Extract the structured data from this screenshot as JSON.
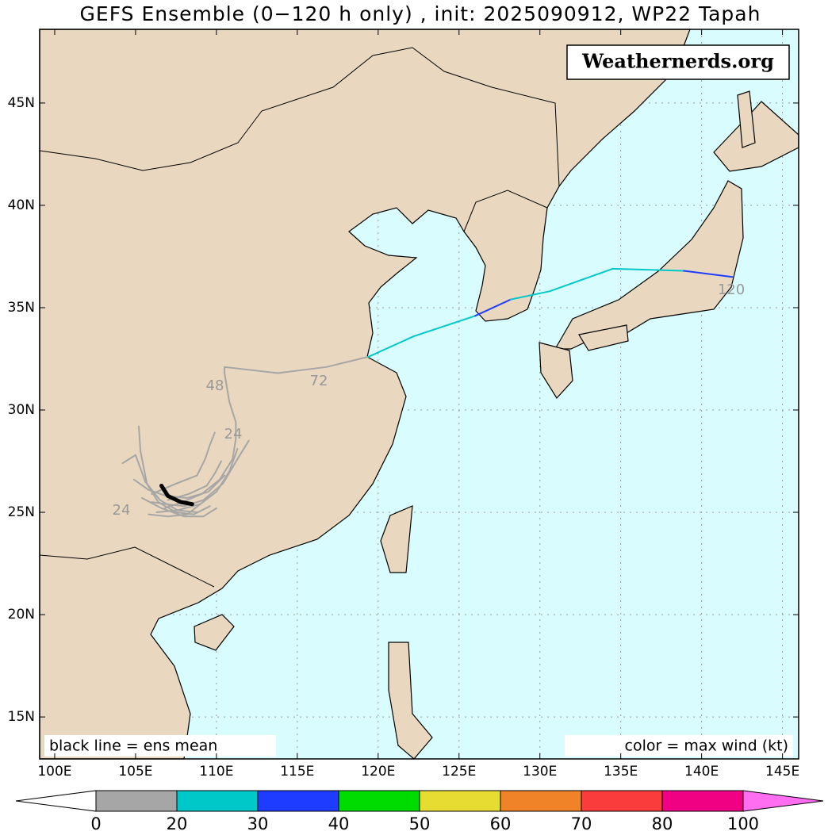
{
  "title": "GEFS Ensemble (0−120 h only) , init: 2025090912, WP22 Tapah",
  "watermark": "Weathernerds.org",
  "mean_note": "black line = ens mean",
  "color_note": "color = max wind (kt)",
  "map": {
    "lon_range": [
      99.07,
      146.0
    ],
    "lat_range": [
      12.95,
      48.6
    ],
    "land_color": "#e9d8bf",
    "ocean_color": "#d9fdfe",
    "grid": true,
    "xticks": [
      {
        "value": 100,
        "label": "100E"
      },
      {
        "value": 105,
        "label": "105E"
      },
      {
        "value": 110,
        "label": "110E"
      },
      {
        "value": 115,
        "label": "115E"
      },
      {
        "value": 120,
        "label": "120E"
      },
      {
        "value": 125,
        "label": "125E"
      },
      {
        "value": 130,
        "label": "130E"
      },
      {
        "value": 135,
        "label": "135E"
      },
      {
        "value": 140,
        "label": "140E"
      },
      {
        "value": 145,
        "label": "145E"
      }
    ],
    "yticks": [
      {
        "value": 15,
        "label": "15N"
      },
      {
        "value": 20,
        "label": "20N"
      },
      {
        "value": 25,
        "label": "25N"
      },
      {
        "value": 30,
        "label": "30N"
      },
      {
        "value": 35,
        "label": "35N"
      },
      {
        "value": 40,
        "label": "40N"
      },
      {
        "value": 45,
        "label": "45N"
      }
    ]
  },
  "tracks": {
    "segments": [
      {
        "color": "#a6a6a6",
        "lon": [
          111.2,
          110.8,
          110.5,
          110.5,
          113.8,
          116.8,
          119.4
        ],
        "lat": [
          29.4,
          30.4,
          31.8,
          32.1,
          31.8,
          32.1,
          32.6
        ]
      },
      {
        "color": "#00c8c8",
        "lon": [
          119.4,
          122.2,
          126.0
        ],
        "lat": [
          32.6,
          33.6,
          34.6
        ]
      },
      {
        "color": "#1e3cff",
        "lon": [
          126.0,
          128.2
        ],
        "lat": [
          34.6,
          35.4
        ]
      },
      {
        "color": "#00c8c8",
        "lon": [
          128.2,
          130.6,
          134.5,
          138.9
        ],
        "lat": [
          35.4,
          35.8,
          36.9,
          36.8
        ]
      },
      {
        "color": "#1e3cff",
        "lon": [
          138.9,
          141.9
        ],
        "lat": [
          36.8,
          36.5
        ]
      }
    ],
    "members": [
      {
        "lon": [
          106.0,
          106.9,
          108.0,
          109.2,
          110.4,
          111.3,
          112.0
        ],
        "lat": [
          25.5,
          25.4,
          25.3,
          25.6,
          26.4,
          27.6,
          28.5
        ]
      },
      {
        "lon": [
          104.9,
          105.8,
          106.9,
          108.2,
          109.5,
          110.5
        ],
        "lat": [
          26.6,
          26.1,
          25.8,
          25.7,
          26.0,
          26.8
        ]
      },
      {
        "lon": [
          104.2,
          105.0,
          105.6,
          106.5,
          107.6,
          108.8
        ],
        "lat": [
          27.4,
          27.8,
          26.5,
          25.6,
          25.1,
          25.0
        ]
      },
      {
        "lon": [
          105.2,
          105.3,
          105.7,
          106.4,
          107.5,
          108.6,
          109.6
        ],
        "lat": [
          29.2,
          28.0,
          26.4,
          25.5,
          25.0,
          24.9,
          25.3
        ]
      },
      {
        "lon": [
          106.3,
          107.6,
          109.0,
          110.0,
          110.8,
          111.3
        ],
        "lat": [
          25.0,
          25.1,
          25.4,
          26.0,
          27.0,
          28.1
        ]
      },
      {
        "lon": [
          106.0,
          107.5,
          108.8,
          109.3,
          109.6,
          109.9
        ],
        "lat": [
          25.9,
          26.4,
          26.8,
          27.6,
          28.3,
          28.9
        ]
      },
      {
        "lon": [
          105.4,
          106.6,
          108.0,
          109.2,
          110.0
        ],
        "lat": [
          25.7,
          25.2,
          24.8,
          24.8,
          25.2
        ]
      },
      {
        "lon": [
          106.8,
          107.9,
          109.1,
          110.2,
          111.0,
          111.2,
          111.2
        ],
        "lat": [
          25.2,
          25.5,
          25.9,
          26.6,
          27.6,
          28.6,
          29.4
        ]
      },
      {
        "lon": [
          107.0,
          108.3,
          109.4,
          109.9,
          110.3
        ],
        "lat": [
          25.6,
          25.9,
          26.3,
          26.9,
          27.5
        ]
      },
      {
        "lon": [
          105.8,
          107.0,
          108.2,
          109.0
        ],
        "lat": [
          24.9,
          24.8,
          24.9,
          25.4
        ]
      }
    ],
    "mean": {
      "color": "#000000",
      "lon": [
        106.6,
        107.0,
        107.8,
        108.5
      ],
      "lat": [
        26.3,
        25.8,
        25.5,
        25.4
      ]
    },
    "labels": [
      48,
      72,
      24,
      24,
      120
    ]
  },
  "colorbar": {
    "ticks": [
      0,
      20,
      30,
      40,
      50,
      60,
      70,
      80,
      100
    ],
    "colors": [
      "#a6a6a6",
      "#00c8c8",
      "#1e3cff",
      "#00dc00",
      "#e6dc32",
      "#f08228",
      "#fa3c3c",
      "#f00082"
    ],
    "under_color": "#ffffff",
    "over_color": "#ff6ef0"
  }
}
